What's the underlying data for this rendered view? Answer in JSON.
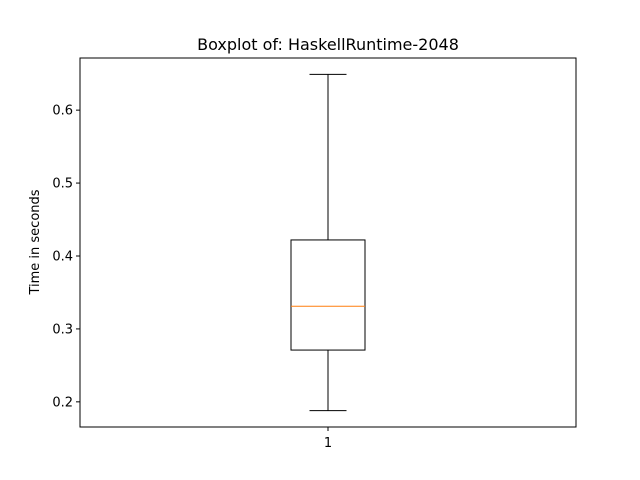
{
  "chart_data": {
    "type": "boxplot",
    "title": "Boxplot of: HaskellRuntime-2048",
    "xlabel": "",
    "ylabel": "Time in seconds",
    "categories": [
      "1"
    ],
    "boxes": [
      {
        "category": "1",
        "whisker_low": 0.188,
        "q1": 0.271,
        "median": 0.331,
        "q3": 0.422,
        "whisker_high": 0.649
      }
    ],
    "ylim": [
      0.1655,
      0.6715
    ],
    "yticks": [
      0.2,
      0.3,
      0.4,
      0.5,
      0.6
    ],
    "ytick_labels": [
      "0.2",
      "0.3",
      "0.4",
      "0.5",
      "0.6"
    ],
    "grid": false,
    "colors": {
      "box": "#000000",
      "median": "#ff7f0e",
      "whisker": "#000000"
    }
  }
}
